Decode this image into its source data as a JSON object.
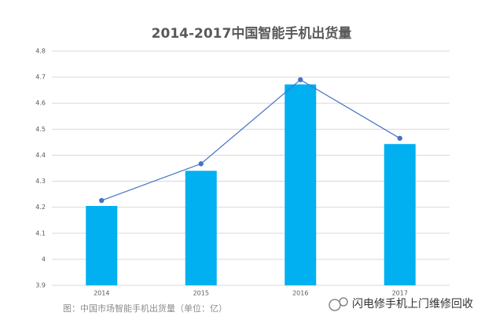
{
  "chart_data": {
    "type": "combo",
    "title": "2014-2017中国智能手机出货量",
    "categories": [
      "2014",
      "2015",
      "2016",
      "2017"
    ],
    "series": [
      {
        "mark": "bar",
        "color": "#00b0f0",
        "values": [
          4.205,
          4.34,
          4.672,
          4.443
        ]
      },
      {
        "mark": "line",
        "color": "#4472c4",
        "values": [
          4.226,
          4.367,
          4.69,
          4.465
        ]
      }
    ],
    "ylim": [
      3.9,
      4.8
    ],
    "yticks": [
      3.9,
      4,
      4.1,
      4.2,
      4.3,
      4.4,
      4.5,
      4.6,
      4.7,
      4.8
    ],
    "grid": true
  },
  "caption": "图：中国市场智能手机出货量（单位：亿）",
  "watermark": "闪电修手机上门维修回收"
}
